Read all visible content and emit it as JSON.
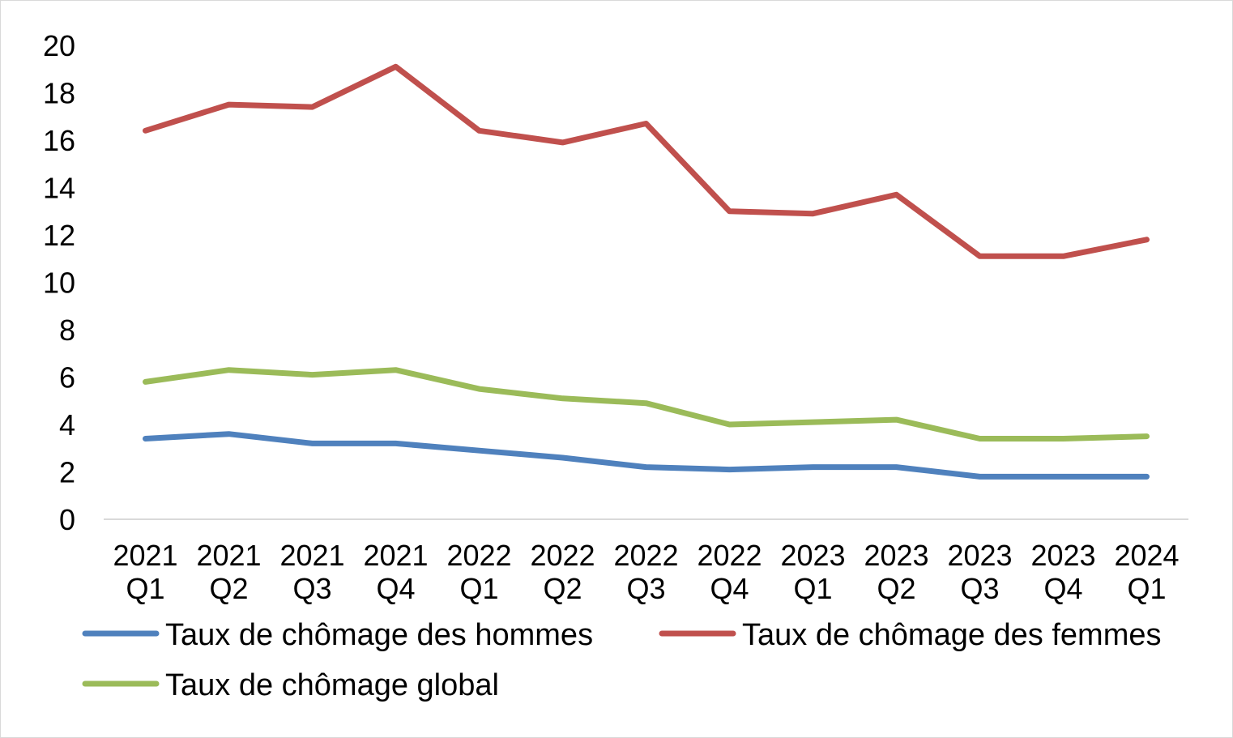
{
  "chart_data": {
    "type": "line",
    "categories": [
      [
        "2021",
        "Q1"
      ],
      [
        "2021",
        "Q2"
      ],
      [
        "2021",
        "Q3"
      ],
      [
        "2021",
        "Q4"
      ],
      [
        "2022",
        "Q1"
      ],
      [
        "2022",
        "Q2"
      ],
      [
        "2022",
        "Q3"
      ],
      [
        "2022",
        "Q4"
      ],
      [
        "2023",
        "Q1"
      ],
      [
        "2023",
        "Q2"
      ],
      [
        "2023",
        "Q3"
      ],
      [
        "2023",
        "Q4"
      ],
      [
        "2024",
        "Q1"
      ]
    ],
    "ylim": [
      0,
      20
    ],
    "yticks": [
      "0",
      "2",
      "4",
      "6",
      "8",
      "10",
      "12",
      "14",
      "16",
      "18",
      "20"
    ],
    "grid": false,
    "legend_position": "bottom",
    "series": [
      {
        "name": "Taux de chômage des hommes",
        "color": "#4f81bd",
        "values": [
          3.4,
          3.6,
          3.2,
          3.2,
          2.9,
          2.6,
          2.2,
          2.1,
          2.2,
          2.2,
          1.8,
          1.8,
          1.8
        ]
      },
      {
        "name": "Taux de chômage des femmes",
        "color": "#c0504d",
        "values": [
          16.4,
          17.5,
          17.4,
          19.1,
          16.4,
          15.9,
          16.7,
          13.0,
          12.9,
          13.7,
          11.1,
          11.1,
          11.8
        ]
      },
      {
        "name": "Taux de chômage global",
        "color": "#9bbb59",
        "values": [
          5.8,
          6.3,
          6.1,
          6.3,
          5.5,
          5.1,
          4.9,
          4.0,
          4.1,
          4.2,
          3.4,
          3.4,
          3.5
        ]
      }
    ]
  }
}
